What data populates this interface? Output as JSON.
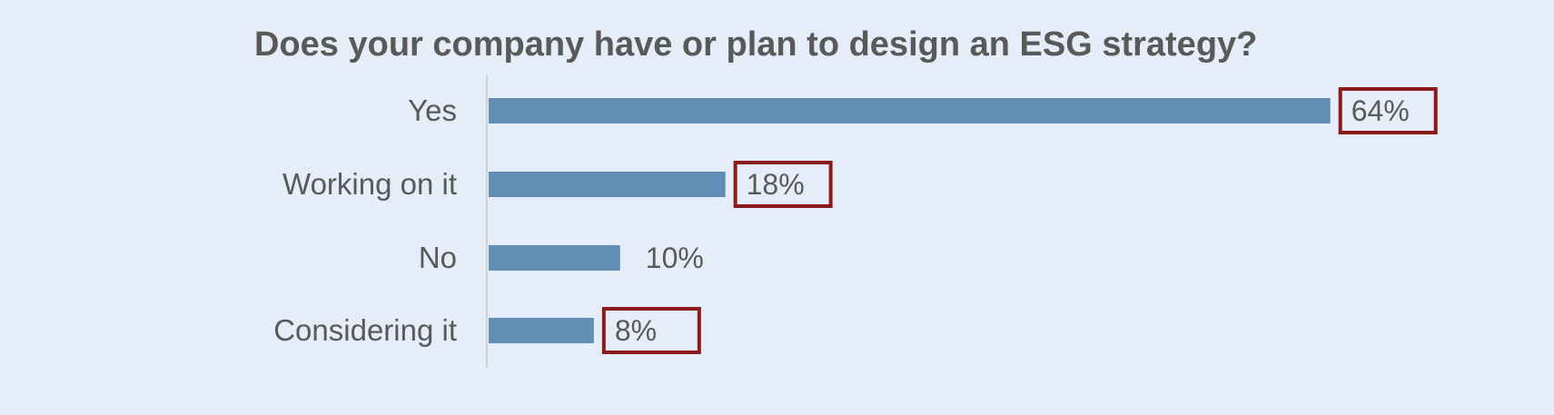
{
  "chart_data": {
    "type": "bar",
    "orientation": "horizontal",
    "title": "Does your company have or plan to design an ESG strategy?",
    "categories": [
      "Yes",
      "Working on it",
      "No",
      "Considering it"
    ],
    "values": [
      64,
      18,
      10,
      8
    ],
    "value_labels": [
      "64%",
      "18%",
      "10%",
      "8%"
    ],
    "highlighted": [
      true,
      true,
      false,
      true
    ],
    "unit": "%",
    "xlim": [
      0,
      70
    ],
    "grid": false,
    "legend": "none"
  },
  "colors": {
    "background": "#e5eef8",
    "bar": "#628eb5",
    "text": "#595959",
    "axis": "#d0d3d8",
    "highlight_border": "#8b1a1a"
  }
}
